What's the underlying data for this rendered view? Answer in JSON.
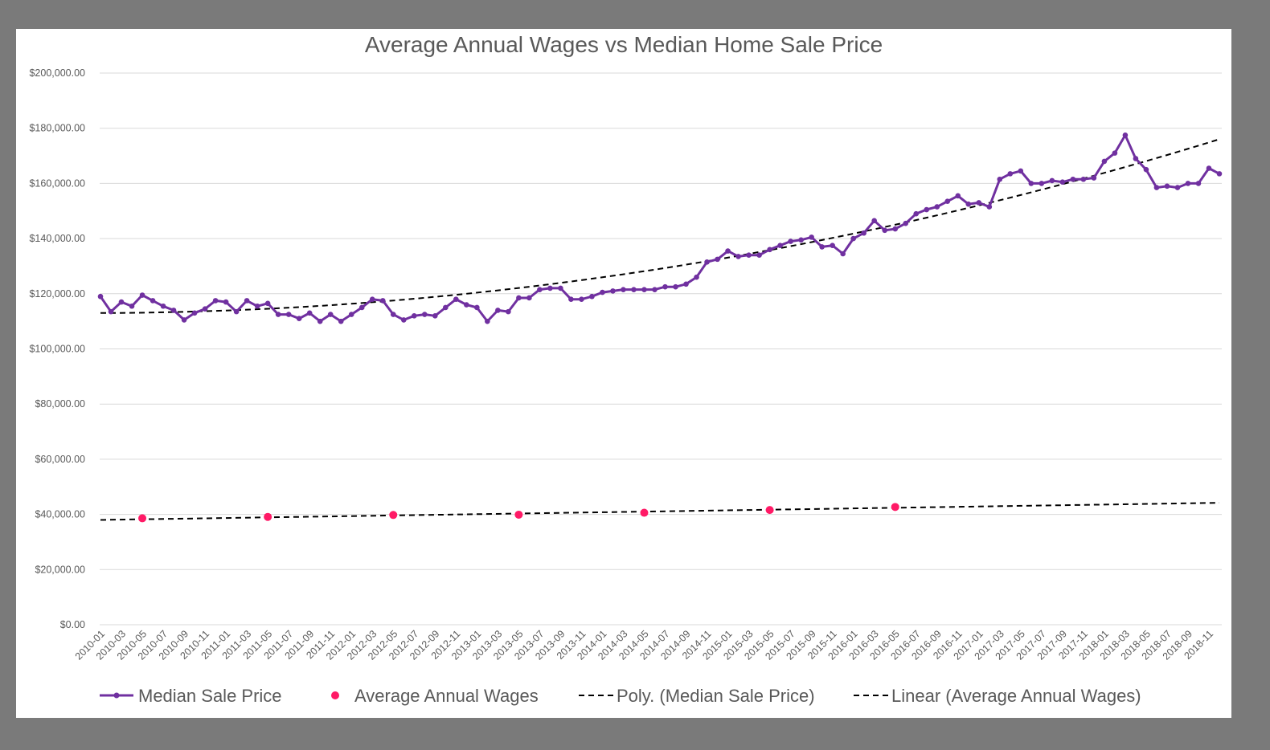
{
  "chart_data": {
    "type": "line",
    "title": "Average Annual Wages vs Median Home Sale Price",
    "xlabel": "",
    "ylabel": "",
    "ylim": [
      0,
      200000
    ],
    "yticks": [
      "$0.00",
      "$20,000.00",
      "$40,000.00",
      "$60,000.00",
      "$80,000.00",
      "$100,000.00",
      "$120,000.00",
      "$140,000.00",
      "$160,000.00",
      "$180,000.00",
      "$200,000.00"
    ],
    "grid": true,
    "legend_position": "bottom",
    "categories": [
      "2010-01",
      "2010-02",
      "2010-03",
      "2010-04",
      "2010-05",
      "2010-06",
      "2010-07",
      "2010-08",
      "2010-09",
      "2010-10",
      "2010-11",
      "2010-12",
      "2011-01",
      "2011-02",
      "2011-03",
      "2011-04",
      "2011-05",
      "2011-06",
      "2011-07",
      "2011-08",
      "2011-09",
      "2011-10",
      "2011-11",
      "2011-12",
      "2012-01",
      "2012-02",
      "2012-03",
      "2012-04",
      "2012-05",
      "2012-06",
      "2012-07",
      "2012-08",
      "2012-09",
      "2012-10",
      "2012-11",
      "2012-12",
      "2013-01",
      "2013-02",
      "2013-03",
      "2013-04",
      "2013-05",
      "2013-06",
      "2013-07",
      "2013-08",
      "2013-09",
      "2013-10",
      "2013-11",
      "2013-12",
      "2014-01",
      "2014-02",
      "2014-03",
      "2014-04",
      "2014-05",
      "2014-06",
      "2014-07",
      "2014-08",
      "2014-09",
      "2014-10",
      "2014-11",
      "2014-12",
      "2015-01",
      "2015-02",
      "2015-03",
      "2015-04",
      "2015-05",
      "2015-06",
      "2015-07",
      "2015-08",
      "2015-09",
      "2015-10",
      "2015-11",
      "2015-12",
      "2016-01",
      "2016-02",
      "2016-03",
      "2016-04",
      "2016-05",
      "2016-06",
      "2016-07",
      "2016-08",
      "2016-09",
      "2016-10",
      "2016-11",
      "2016-12",
      "2017-01",
      "2017-02",
      "2017-03",
      "2017-04",
      "2017-05",
      "2017-06",
      "2017-07",
      "2017-08",
      "2017-09",
      "2017-10",
      "2017-11",
      "2017-12",
      "2018-01",
      "2018-02",
      "2018-03",
      "2018-04",
      "2018-05",
      "2018-06",
      "2018-07",
      "2018-08",
      "2018-09",
      "2018-10",
      "2018-11",
      "2018-12"
    ],
    "xtick_labels": [
      "2010-01",
      "2010-03",
      "2010-05",
      "2010-07",
      "2010-09",
      "2010-11",
      "2011-01",
      "2011-03",
      "2011-05",
      "2011-07",
      "2011-09",
      "2011-11",
      "2012-01",
      "2012-03",
      "2012-05",
      "2012-07",
      "2012-09",
      "2012-11",
      "2013-01",
      "2013-03",
      "2013-05",
      "2013-07",
      "2013-09",
      "2013-11",
      "2014-01",
      "2014-03",
      "2014-05",
      "2014-07",
      "2014-09",
      "2014-11",
      "2015-01",
      "2015-03",
      "2015-05",
      "2015-07",
      "2015-09",
      "2015-11",
      "2016-01",
      "2016-03",
      "2016-05",
      "2016-07",
      "2016-09",
      "2016-11",
      "2017-01",
      "2017-03",
      "2017-05",
      "2017-07",
      "2017-09",
      "2017-11",
      "2018-01",
      "2018-03",
      "2018-05",
      "2018-07",
      "2018-09",
      "2018-11"
    ],
    "series": [
      {
        "name": "Median Sale Price",
        "type": "line",
        "color": "#7030a0",
        "values": [
          119000,
          113500,
          117000,
          115500,
          119500,
          117500,
          115500,
          114000,
          110500,
          113000,
          114500,
          117500,
          117000,
          113500,
          117500,
          115500,
          116500,
          112500,
          112500,
          111000,
          113000,
          110000,
          112500,
          110000,
          112500,
          115000,
          118000,
          117500,
          112500,
          110500,
          112000,
          112500,
          112000,
          115000,
          118000,
          116000,
          115000,
          110000,
          114000,
          113500,
          118500,
          118500,
          121500,
          122000,
          122000,
          118000,
          118000,
          119000,
          120500,
          121000,
          121500,
          121500,
          121500,
          121500,
          122500,
          122500,
          123500,
          126000,
          131500,
          132500,
          135500,
          133500,
          134000,
          134000,
          136000,
          137500,
          139000,
          139500,
          140500,
          137000,
          137500,
          134500,
          140000,
          142000,
          146500,
          143000,
          143500,
          145500,
          149000,
          150500,
          151500,
          153500,
          155500,
          152500,
          153000,
          151500,
          161500,
          163500,
          164500,
          160000,
          160000,
          161000,
          160500,
          161500,
          161500,
          162000,
          168000,
          171000,
          177500,
          169000,
          165000,
          158500,
          159000,
          158500,
          160000,
          160000,
          165500,
          163500
        ]
      },
      {
        "name": "Average Annual Wages",
        "type": "scatter",
        "color": "#ff1a66",
        "points": [
          {
            "x": "2010-05",
            "y": 38600
          },
          {
            "x": "2011-05",
            "y": 39100
          },
          {
            "x": "2012-05",
            "y": 39800
          },
          {
            "x": "2013-05",
            "y": 39900
          },
          {
            "x": "2014-05",
            "y": 40600
          },
          {
            "x": "2015-05",
            "y": 41600
          },
          {
            "x": "2016-05",
            "y": 42700
          }
        ]
      },
      {
        "name": "Poly. (Median Sale Price)",
        "type": "trendline",
        "color": "#000000",
        "y_start": 113000,
        "y_end": 176000
      },
      {
        "name": "Linear (Average Annual Wages)",
        "type": "trendline",
        "color": "#000000",
        "y_start": 38000,
        "y_end": 44200
      }
    ]
  }
}
